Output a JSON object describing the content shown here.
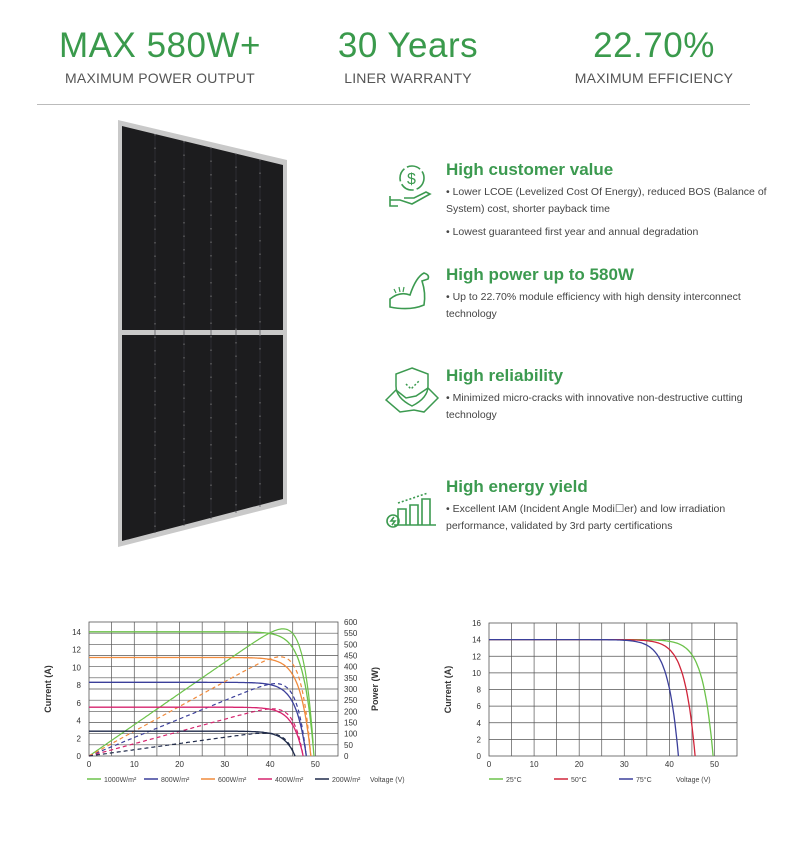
{
  "stats": [
    {
      "value": "MAX 580W+",
      "label": "MAXIMUM POWER OUTPUT"
    },
    {
      "value": "30 Years",
      "label": "LINER WARRANTY"
    },
    {
      "value": "22.70%",
      "label": "MAXIMUM EFFICIENCY"
    }
  ],
  "features": [
    {
      "icon": "dollar-hand-icon",
      "title": "High customer value",
      "bullets": [
        "• Lower LCOE (Levelized Cost Of Energy), reduced BOS (Balance of System) cost, shorter payback time",
        "• Lowest guaranteed first year and annual degradation"
      ]
    },
    {
      "icon": "flexed-arm-icon",
      "title": "High power up to 580W",
      "bullets": [
        "• Up to 22.70% module efficiency with high density interconnect technology"
      ]
    },
    {
      "icon": "shield-handshake-icon",
      "title": "High reliability",
      "bullets": [
        "• Minimized micro-cracks with innovative non-destructive cutting technology"
      ]
    },
    {
      "icon": "bar-growth-icon",
      "title": "High energy yield",
      "bullets": [
        "• Excellent IAM (Incident Angle Modi☐er) and low irradiation performance, validated by 3rd party certifications"
      ]
    }
  ],
  "colors": {
    "brand_green": "#3a9a4c"
  },
  "chart_data": [
    {
      "type": "line",
      "title": "",
      "xlabel": "Voltage (V)",
      "ylabel": "Current (A)",
      "y2label": "Power (W)",
      "xlim": [
        0,
        55
      ],
      "ylim": [
        0,
        15.1
      ],
      "y2lim": [
        0,
        600
      ],
      "xticks": [
        "0",
        "10",
        "20",
        "30",
        "40",
        "50"
      ],
      "yticks": [
        "0",
        "2",
        "4",
        "6",
        "8",
        "10",
        "12",
        "14"
      ],
      "y2ticks": [
        "0",
        "50",
        "100",
        "150",
        "200",
        "250",
        "300",
        "350",
        "400",
        "450",
        "500",
        "550",
        "600"
      ],
      "legend_position": "bottom",
      "series": [
        {
          "name": "1000W/m²",
          "color": "#6cc24a",
          "isc": 14.0,
          "voc": 49.7,
          "pmax": 545,
          "vmp": 41.5
        },
        {
          "name": "800W/m²",
          "color": "#3b3f9a",
          "isc": 8.3,
          "voc": 48.0,
          "pmax": 335,
          "vmp": 42
        },
        {
          "name": "600W/m²",
          "color": "#f08a3c",
          "isc": 11.1,
          "voc": 49.0,
          "pmax": 430,
          "vmp": 40.5
        },
        {
          "name": "400W/m²",
          "color": "#d6246e",
          "isc": 5.5,
          "voc": 47.3,
          "pmax": 215,
          "vmp": 40
        },
        {
          "name": "200W/m²",
          "color": "#1f2a4a",
          "isc": 2.8,
          "voc": 45.5,
          "pmax": 105,
          "vmp": 39
        }
      ]
    },
    {
      "type": "line",
      "xlabel": "Voltage (V)",
      "ylabel": "Current (A)",
      "xlim": [
        0,
        55
      ],
      "ylim": [
        0,
        16
      ],
      "xticks": [
        "0",
        "10",
        "20",
        "30",
        "40",
        "50"
      ],
      "yticks": [
        "0",
        "2",
        "4",
        "6",
        "8",
        "10",
        "12",
        "14",
        "16"
      ],
      "legend_position": "bottom",
      "series": [
        {
          "name": "25°C",
          "color": "#6cc24a",
          "isc": 14.0,
          "voc": 49.7
        },
        {
          "name": "50°C",
          "color": "#d0253a",
          "isc": 14.0,
          "voc": 45.7
        },
        {
          "name": "75°C",
          "color": "#3b3f9a",
          "isc": 14.0,
          "voc": 42.0
        }
      ]
    }
  ]
}
